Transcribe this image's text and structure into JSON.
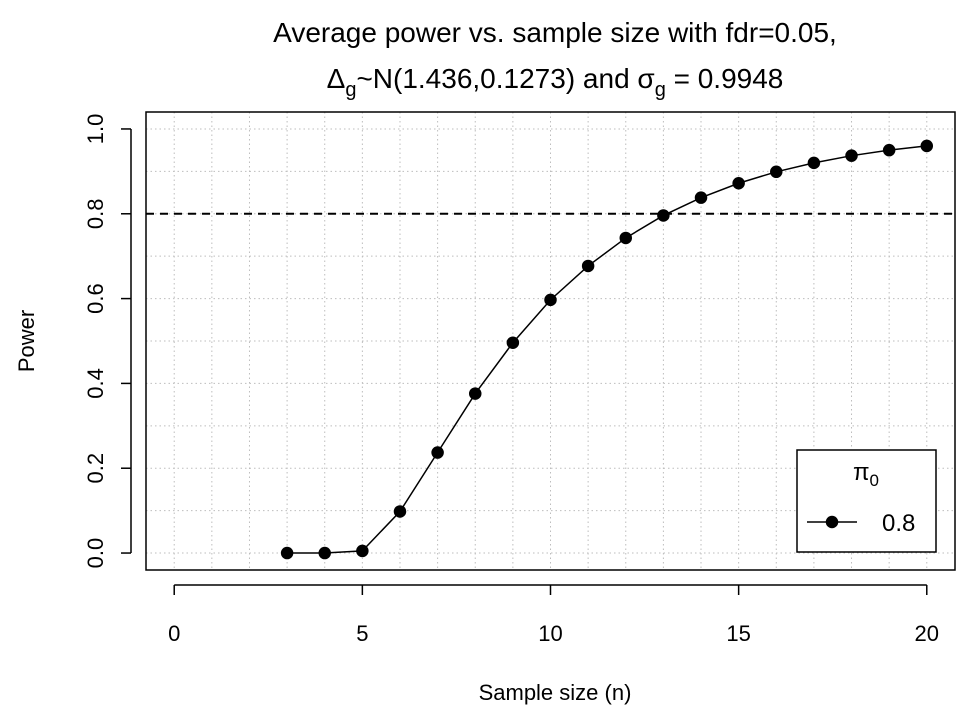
{
  "chart_data": {
    "type": "line",
    "title_line1": "Average power vs. sample size with fdr=0.05,",
    "title_line2": {
      "delta_symbol": "Δ",
      "delta_sub": "g",
      "dist_text": "~N(1.436,0.1273) and ",
      "sigma_symbol": "σ",
      "sigma_sub": "g",
      "sigma_value": " = 0.9948"
    },
    "xlabel": "Sample size (n)",
    "ylabel": "Power",
    "xlim": [
      -0.75,
      20.75
    ],
    "ylim": [
      -0.04,
      1.04
    ],
    "x_ticks": [
      0,
      5,
      10,
      15,
      20
    ],
    "y_ticks": [
      0.0,
      0.2,
      0.4,
      0.6,
      0.8,
      1.0
    ],
    "x_tick_labels": [
      "0",
      "5",
      "10",
      "15",
      "20"
    ],
    "y_tick_labels": [
      "0.0",
      "0.2",
      "0.4",
      "0.6",
      "0.8",
      "1.0"
    ],
    "grid": true,
    "reference_line": {
      "y": 0.8,
      "style": "dashed"
    },
    "legend": {
      "title_symbol": "π",
      "title_sub": "0",
      "placement": "bottom-right",
      "entries": [
        {
          "label": "0.8"
        }
      ]
    },
    "series": [
      {
        "name": "0.8",
        "color": "#000000",
        "marker": "circle",
        "x": [
          3,
          4,
          5,
          6,
          7,
          8,
          9,
          10,
          11,
          12,
          13,
          14,
          15,
          16,
          17,
          18,
          19,
          20
        ],
        "values": [
          0.0,
          0.0,
          0.005,
          0.098,
          0.237,
          0.376,
          0.496,
          0.597,
          0.677,
          0.743,
          0.796,
          0.838,
          0.872,
          0.899,
          0.92,
          0.937,
          0.95,
          0.96
        ]
      }
    ]
  }
}
